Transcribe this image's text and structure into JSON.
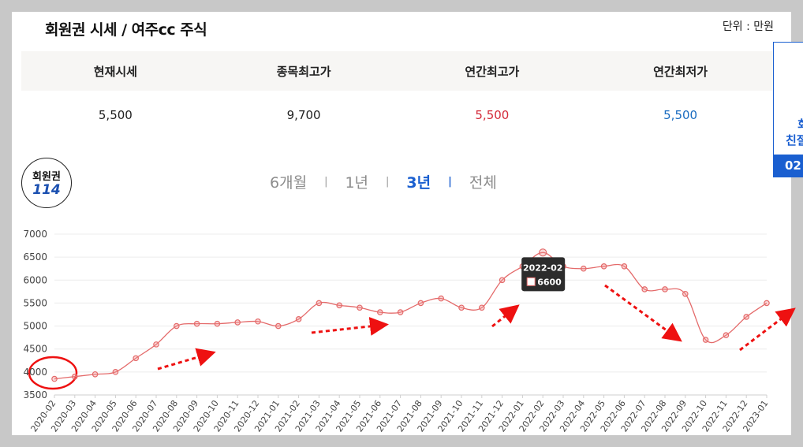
{
  "header": {
    "title": "회원권 시세 / 여주cc 주식",
    "unit": "단위 : 만원"
  },
  "summary": {
    "headers": [
      "현재시세",
      "종목최고가",
      "연간최고가",
      "연간최저가"
    ],
    "values": [
      "5,500",
      "9,700",
      "5,500",
      "5,500"
    ],
    "colors": [
      "#222222",
      "#222222",
      "#d42b3a",
      "#1a6cc0"
    ]
  },
  "logo": {
    "line1": "회원권",
    "line2": "114"
  },
  "periods": {
    "items": [
      "6개월",
      "1년",
      "3년",
      "전체"
    ],
    "active": "3년"
  },
  "sidecard": {
    "line1": "회",
    "line2": "친절",
    "line3": "02"
  },
  "tooltip": {
    "date": "2022-02",
    "value": "6600"
  },
  "chart_data": {
    "type": "line",
    "x": [
      "2020-02",
      "2020-03",
      "2020-04",
      "2020-05",
      "2020-06",
      "2020-07",
      "2020-08",
      "2020-09",
      "2020-10",
      "2020-11",
      "2020-12",
      "2021-01",
      "2021-02",
      "2021-03",
      "2021-04",
      "2021-05",
      "2021-06",
      "2021-07",
      "2021-08",
      "2021-09",
      "2021-10",
      "2021-11",
      "2021-12",
      "2022-01",
      "2022-02",
      "2022-03",
      "2022-04",
      "2022-05",
      "2022-06",
      "2022-07",
      "2022-08",
      "2022-09",
      "2022-10",
      "2022-11",
      "2022-12",
      "2023-01"
    ],
    "series": [
      {
        "values": [
          3850,
          3900,
          3950,
          4000,
          4300,
          4600,
          5000,
          5050,
          5050,
          5080,
          5100,
          5000,
          5150,
          5500,
          5450,
          5400,
          5300,
          5300,
          5500,
          5600,
          5400,
          5400,
          6000,
          6300,
          6600,
          6300,
          6250,
          6300,
          6300,
          5800,
          5800,
          5700,
          4700,
          4800,
          5200,
          5500
        ],
        "color": "#e46a6a"
      }
    ],
    "ylim": [
      3500,
      7000
    ],
    "yticks": [
      3500,
      4000,
      4500,
      5000,
      5500,
      6000,
      6500,
      7000
    ],
    "xlabel": "",
    "ylabel": "",
    "grid": true,
    "highlight": "2022-02"
  }
}
